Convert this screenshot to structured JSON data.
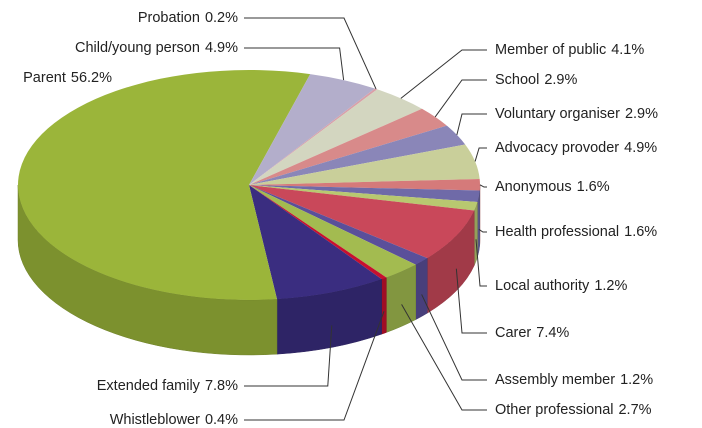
{
  "chart_data": {
    "type": "pie",
    "categories": [
      "Probation",
      "Member of public",
      "School",
      "Voluntary organiser",
      "Advocacy provoder",
      "Anonymous",
      "Health professional",
      "Local authority",
      "Carer",
      "Assembly member",
      "Other professional",
      "Whistleblower",
      "Extended family",
      "Parent",
      "Child/young person"
    ],
    "values": [
      0.2,
      4.1,
      2.9,
      2.9,
      4.9,
      1.6,
      1.6,
      1.2,
      7.4,
      1.2,
      2.7,
      0.4,
      7.8,
      56.2,
      4.9
    ],
    "value_labels": [
      "0.2%",
      "4.1%",
      "2.9%",
      "2.9%",
      "4.9%",
      "1.6%",
      "1.6%",
      "1.2%",
      "7.4%",
      "1.2%",
      "2.7%",
      "0.4%",
      "7.8%",
      "56.2%",
      "4.9%"
    ],
    "colors": [
      "#d9a0a8",
      "#d3d6c0",
      "#d88a8a",
      "#8a86b8",
      "#c9cf9a",
      "#d57a7a",
      "#6f6aa8",
      "#b8c870",
      "#c9485a",
      "#5a4f9a",
      "#a3bb50",
      "#c8102e",
      "#3a2d80",
      "#9bb53a",
      "#b3aecb"
    ]
  }
}
